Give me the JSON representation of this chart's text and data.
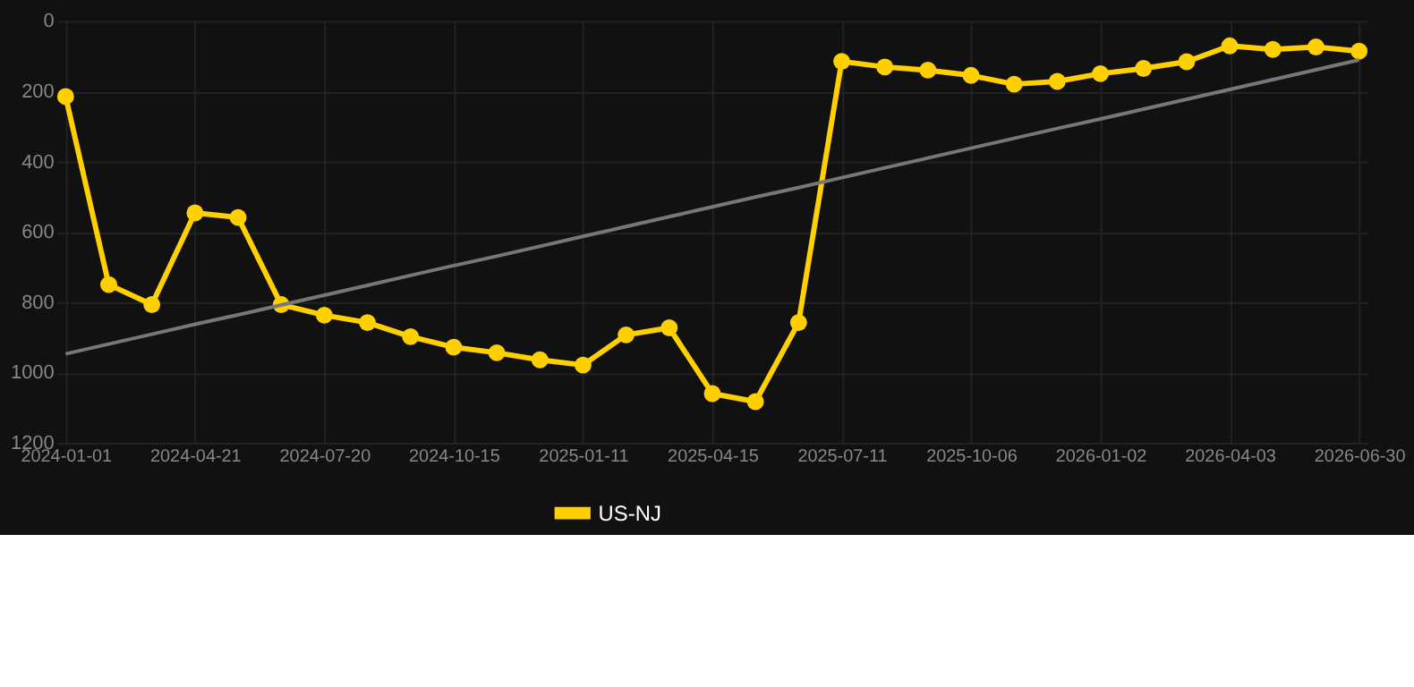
{
  "chart_data": {
    "type": "line",
    "categories": [
      "2024-01-01",
      null,
      null,
      "2024-04-21",
      null,
      null,
      "2024-07-20",
      null,
      null,
      "2024-10-15",
      null,
      null,
      "2025-01-11",
      null,
      null,
      "2025-04-15",
      null,
      null,
      "2025-07-11",
      null,
      null,
      "2025-10-06",
      null,
      null,
      "2026-01-02",
      null,
      null,
      "2026-04-03",
      null,
      null,
      "2026-06-30"
    ],
    "series": [
      {
        "name": "US-NJ",
        "color": "#ffd000",
        "values": [
          215,
          750,
          807,
          546,
          559,
          807,
          837,
          858,
          898,
          928,
          944,
          964,
          979,
          893,
          873,
          1060,
          1083,
          858,
          115,
          131,
          140,
          155,
          180,
          172,
          150,
          135,
          116,
          71,
          81,
          74,
          86
        ]
      },
      {
        "color": "#777777",
        "marker": "none",
        "values": [
          947,
          919,
          891,
          863,
          836,
          808,
          780,
          752,
          724,
          696,
          669,
          641,
          613,
          585,
          557,
          529,
          501,
          474,
          446,
          418,
          390,
          362,
          334,
          306,
          279,
          251,
          223,
          195,
          167,
          139,
          111
        ]
      }
    ],
    "ylim": [
      1200,
      0
    ],
    "yticks": [
      0,
      200,
      400,
      600,
      800,
      1000,
      {
        "value": 1200,
        "label": "1200"
      }
    ],
    "grid": true,
    "legend": "bottom",
    "marker": "circle",
    "line_style": "solid"
  }
}
